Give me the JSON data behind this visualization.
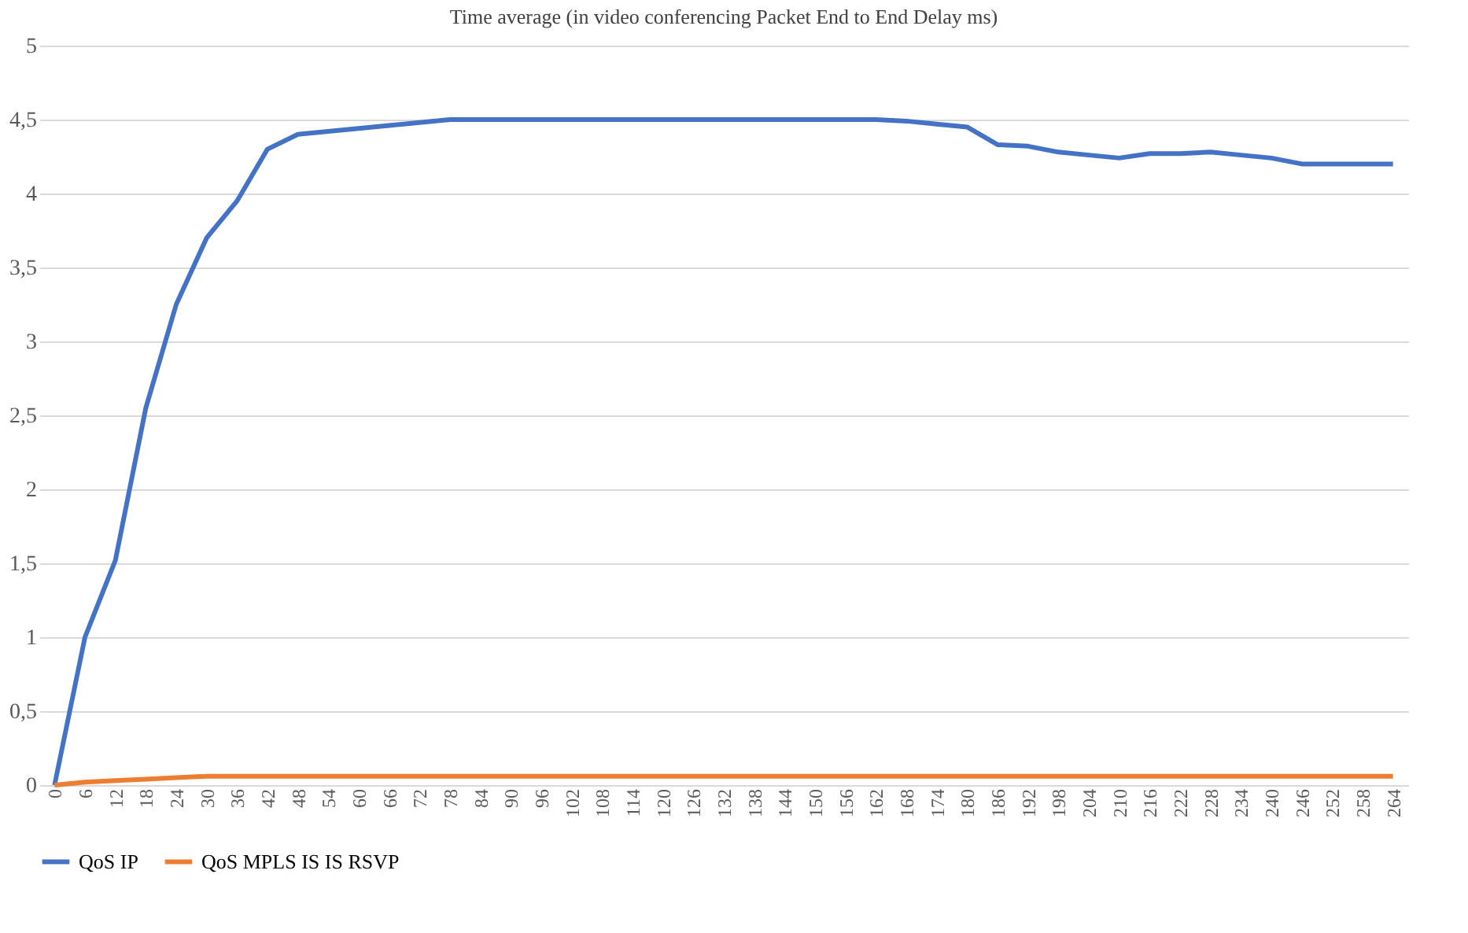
{
  "chart_data": {
    "type": "line",
    "title": "Time average (in video conferencing Packet End to End  Delay ms)",
    "categories": [
      "0",
      "6",
      "12",
      "18",
      "24",
      "30",
      "36",
      "42",
      "48",
      "54",
      "60",
      "66",
      "72",
      "78",
      "84",
      "90",
      "96",
      "102",
      "108",
      "114",
      "120",
      "126",
      "132",
      "138",
      "144",
      "150",
      "156",
      "162",
      "168",
      "174",
      "180",
      "186",
      "192",
      "198",
      "204",
      "210",
      "216",
      "222",
      "228",
      "234",
      "240",
      "246",
      "252",
      "258",
      "264"
    ],
    "series": [
      {
        "name": "QoS IP",
        "color": "#4472c4",
        "values": [
          0,
          1.0,
          1.52,
          2.55,
          3.25,
          3.7,
          3.95,
          4.3,
          4.4,
          4.42,
          4.44,
          4.46,
          4.48,
          4.5,
          4.5,
          4.5,
          4.5,
          4.5,
          4.5,
          4.5,
          4.5,
          4.5,
          4.5,
          4.5,
          4.5,
          4.5,
          4.5,
          4.5,
          4.49,
          4.47,
          4.45,
          4.33,
          4.32,
          4.28,
          4.26,
          4.24,
          4.27,
          4.27,
          4.28,
          4.26,
          4.24,
          4.2,
          4.2,
          4.2,
          4.2
        ]
      },
      {
        "name": "QoS MPLS IS IS RSVP",
        "color": "#ed7d31",
        "values": [
          0,
          0.02,
          0.03,
          0.04,
          0.05,
          0.06,
          0.06,
          0.06,
          0.06,
          0.06,
          0.06,
          0.06,
          0.06,
          0.06,
          0.06,
          0.06,
          0.06,
          0.06,
          0.06,
          0.06,
          0.06,
          0.06,
          0.06,
          0.06,
          0.06,
          0.06,
          0.06,
          0.06,
          0.06,
          0.06,
          0.06,
          0.06,
          0.06,
          0.06,
          0.06,
          0.06,
          0.06,
          0.06,
          0.06,
          0.06,
          0.06,
          0.06,
          0.06,
          0.06,
          0.06
        ]
      }
    ],
    "ylim": [
      0,
      5
    ],
    "yticks": [
      0,
      {
        "value": 0.5,
        "label": "0,5"
      },
      1,
      {
        "value": 1.5,
        "label": "1,5"
      },
      2,
      {
        "value": 2.5,
        "label": "2,5"
      },
      3,
      {
        "value": 3.5,
        "label": "3,5"
      },
      4,
      {
        "value": 4.5,
        "label": "4,5"
      },
      5
    ],
    "grid": "y",
    "legend": "bottom",
    "marker": "none",
    "line_style": "solid"
  }
}
